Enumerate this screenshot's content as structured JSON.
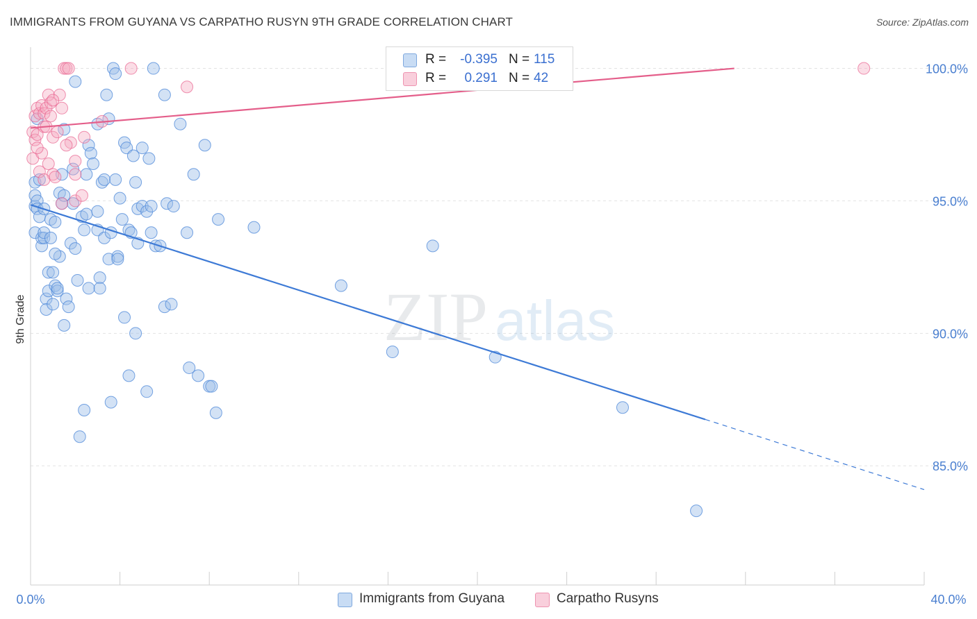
{
  "header": {
    "title": "IMMIGRANTS FROM GUYANA VS CARPATHO RUSYN 9TH GRADE CORRELATION CHART",
    "source": "Source: ZipAtlas.com"
  },
  "watermark": {
    "zip": "ZIP",
    "atlas": "atlas"
  },
  "legend": {
    "rows": [
      {
        "r_label": "R =",
        "r_value": "-0.395",
        "n_label": "N =",
        "n_value": "115",
        "color": "#9dbfe8"
      },
      {
        "r_label": "R =",
        "r_value": "0.291",
        "n_label": "N =",
        "n_value": "42",
        "color": "#f4a9c0"
      }
    ]
  },
  "bottom_legend": [
    {
      "label": "Immigrants from Guyana",
      "color": "#9dbfe8"
    },
    {
      "label": "Carpatho Rusyns",
      "color": "#f4a9c0"
    }
  ],
  "chart_data": {
    "type": "scatter",
    "title": "IMMIGRANTS FROM GUYANA VS CARPATHO RUSYN 9TH GRADE CORRELATION CHART",
    "xlabel": "",
    "ylabel": "9th Grade",
    "xlim": [
      0,
      40
    ],
    "ylim": [
      80.5,
      100.8
    ],
    "x_tick_labels": [
      "0.0%",
      "40.0%"
    ],
    "y_ticks": [
      85,
      90,
      95,
      100
    ],
    "y_tick_labels": [
      "85.0%",
      "90.0%",
      "95.0%",
      "100.0%"
    ],
    "grid": true,
    "colors": {
      "guyana": "#4a86d8",
      "guyana_fill": "#9dbfe8",
      "rusyn": "#e8628f",
      "rusyn_fill": "#f4a9c0",
      "tick": "#4a7fd0"
    },
    "series": [
      {
        "name": "Immigrants from Guyana",
        "points": [
          [
            0.2,
            93.8
          ],
          [
            0.2,
            94.8
          ],
          [
            0.2,
            95.2
          ],
          [
            0.2,
            95.7
          ],
          [
            0.3,
            95.0
          ],
          [
            0.3,
            94.7
          ],
          [
            0.4,
            94.4
          ],
          [
            0.4,
            95.8
          ],
          [
            0.5,
            93.3
          ],
          [
            0.5,
            93.6
          ],
          [
            0.6,
            93.6
          ],
          [
            0.6,
            93.8
          ],
          [
            0.6,
            94.7
          ],
          [
            0.7,
            91.3
          ],
          [
            0.7,
            90.9
          ],
          [
            0.8,
            91.6
          ],
          [
            0.8,
            92.3
          ],
          [
            0.9,
            93.6
          ],
          [
            0.9,
            94.3
          ],
          [
            1.0,
            91.1
          ],
          [
            1.0,
            92.3
          ],
          [
            1.1,
            94.2
          ],
          [
            1.1,
            91.8
          ],
          [
            1.2,
            91.6
          ],
          [
            1.2,
            91.7
          ],
          [
            1.3,
            92.9
          ],
          [
            1.3,
            95.3
          ],
          [
            1.4,
            96.0
          ],
          [
            1.4,
            94.9
          ],
          [
            1.5,
            90.3
          ],
          [
            1.5,
            95.2
          ],
          [
            1.6,
            91.3
          ],
          [
            1.7,
            91.0
          ],
          [
            1.8,
            93.4
          ],
          [
            1.9,
            94.9
          ],
          [
            1.9,
            96.2
          ],
          [
            2.0,
            99.5
          ],
          [
            2.0,
            93.2
          ],
          [
            2.1,
            92.0
          ],
          [
            2.2,
            86.1
          ],
          [
            2.3,
            94.4
          ],
          [
            2.4,
            93.9
          ],
          [
            2.4,
            87.1
          ],
          [
            2.5,
            94.5
          ],
          [
            2.6,
            97.1
          ],
          [
            2.6,
            91.7
          ],
          [
            2.7,
            96.8
          ],
          [
            2.8,
            96.4
          ],
          [
            3.0,
            97.9
          ],
          [
            3.0,
            94.6
          ],
          [
            3.0,
            93.9
          ],
          [
            3.1,
            92.1
          ],
          [
            3.1,
            91.7
          ],
          [
            3.2,
            95.7
          ],
          [
            3.3,
            95.8
          ],
          [
            3.3,
            93.6
          ],
          [
            3.4,
            99.0
          ],
          [
            3.5,
            98.1
          ],
          [
            3.5,
            92.8
          ],
          [
            3.6,
            93.8
          ],
          [
            3.6,
            87.4
          ],
          [
            3.7,
            100.0
          ],
          [
            3.8,
            99.8
          ],
          [
            3.8,
            95.8
          ],
          [
            3.9,
            92.9
          ],
          [
            3.9,
            92.8
          ],
          [
            4.0,
            95.1
          ],
          [
            4.1,
            94.3
          ],
          [
            4.2,
            90.6
          ],
          [
            4.2,
            97.2
          ],
          [
            4.3,
            97.0
          ],
          [
            4.4,
            93.9
          ],
          [
            4.4,
            88.4
          ],
          [
            4.5,
            93.8
          ],
          [
            4.6,
            96.7
          ],
          [
            4.7,
            90.0
          ],
          [
            4.7,
            95.7
          ],
          [
            4.8,
            93.4
          ],
          [
            4.8,
            94.7
          ],
          [
            5.0,
            94.8
          ],
          [
            5.0,
            97.0
          ],
          [
            5.2,
            94.6
          ],
          [
            5.2,
            87.8
          ],
          [
            5.3,
            96.6
          ],
          [
            5.4,
            94.8
          ],
          [
            5.4,
            93.8
          ],
          [
            5.5,
            100.0
          ],
          [
            5.6,
            93.3
          ],
          [
            5.8,
            93.3
          ],
          [
            6.0,
            99.0
          ],
          [
            6.0,
            91.0
          ],
          [
            6.1,
            94.9
          ],
          [
            6.3,
            91.1
          ],
          [
            6.4,
            94.8
          ],
          [
            6.7,
            97.9
          ],
          [
            7.0,
            93.8
          ],
          [
            7.1,
            88.7
          ],
          [
            7.3,
            96.0
          ],
          [
            7.5,
            88.4
          ],
          [
            7.8,
            97.1
          ],
          [
            8.0,
            88.0
          ],
          [
            8.1,
            88.0
          ],
          [
            8.3,
            87.0
          ],
          [
            8.4,
            94.3
          ],
          [
            10.0,
            94.0
          ],
          [
            13.9,
            91.8
          ],
          [
            16.2,
            89.3
          ],
          [
            18.0,
            93.3
          ],
          [
            20.8,
            89.1
          ],
          [
            26.5,
            87.2
          ],
          [
            29.8,
            83.3
          ],
          [
            0.3,
            98.1
          ],
          [
            1.5,
            97.7
          ],
          [
            2.5,
            96.0
          ],
          [
            1.1,
            93.0
          ]
        ],
        "trend": {
          "x": [
            0,
            30.2
          ],
          "y": [
            94.85,
            86.75
          ],
          "dashed_to": [
            40,
            84.1
          ]
        }
      },
      {
        "name": "Carpatho Rusyns",
        "points": [
          [
            0.1,
            96.6
          ],
          [
            0.1,
            97.6
          ],
          [
            0.2,
            98.2
          ],
          [
            0.2,
            97.3
          ],
          [
            0.3,
            98.5
          ],
          [
            0.3,
            97.5
          ],
          [
            0.4,
            98.3
          ],
          [
            0.4,
            96.1
          ],
          [
            0.5,
            98.6
          ],
          [
            0.6,
            97.8
          ],
          [
            0.6,
            98.3
          ],
          [
            0.7,
            98.5
          ],
          [
            0.7,
            97.8
          ],
          [
            0.8,
            99.0
          ],
          [
            0.8,
            96.4
          ],
          [
            0.9,
            98.2
          ],
          [
            0.9,
            98.7
          ],
          [
            1.0,
            97.4
          ],
          [
            1.0,
            96.0
          ],
          [
            1.1,
            95.9
          ],
          [
            1.2,
            97.6
          ],
          [
            1.3,
            99.0
          ],
          [
            1.4,
            98.5
          ],
          [
            1.4,
            94.9
          ],
          [
            1.5,
            100.0
          ],
          [
            1.6,
            100.0
          ],
          [
            1.7,
            100.0
          ],
          [
            1.8,
            97.2
          ],
          [
            2.0,
            95.0
          ],
          [
            2.3,
            95.2
          ],
          [
            2.4,
            97.4
          ],
          [
            2.0,
            96.0
          ],
          [
            1.6,
            97.1
          ],
          [
            4.5,
            100.0
          ],
          [
            7.0,
            99.3
          ],
          [
            37.3,
            100.0
          ],
          [
            0.5,
            96.8
          ],
          [
            0.3,
            97.0
          ],
          [
            1.0,
            98.8
          ],
          [
            2.0,
            96.5
          ],
          [
            0.6,
            95.8
          ],
          [
            3.2,
            98.0
          ]
        ],
        "trend": {
          "x": [
            0,
            31.5
          ],
          "y": [
            97.75,
            100.0
          ]
        }
      }
    ]
  }
}
